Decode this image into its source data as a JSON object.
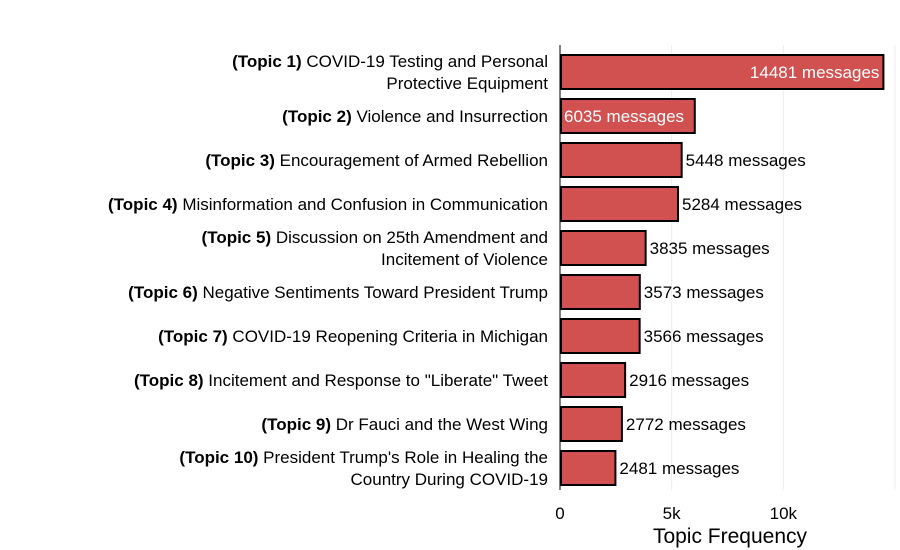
{
  "chart_data": {
    "type": "bar",
    "orientation": "horizontal",
    "title": "",
    "xlabel": "Topic Frequency",
    "ylabel": "",
    "xlim": [
      0,
      15000
    ],
    "x_ticks": [
      0,
      5000,
      10000
    ],
    "x_tick_labels": [
      "0",
      "5k",
      "10k"
    ],
    "grid": true,
    "bar_color": "#d05150",
    "bar_edge_color": "#000000",
    "categories": [
      {
        "prefix": "(Topic 1)",
        "name": "COVID-19 Testing and Personal Protective Equipment"
      },
      {
        "prefix": "(Topic 2)",
        "name": "Violence and Insurrection"
      },
      {
        "prefix": "(Topic 3)",
        "name": "Encouragement of Armed Rebellion"
      },
      {
        "prefix": "(Topic 4)",
        "name": "Misinformation and Confusion in Communication"
      },
      {
        "prefix": "(Topic 5)",
        "name": "Discussion on 25th Amendment and Incitement of Violence"
      },
      {
        "prefix": "(Topic 6)",
        "name": "Negative Sentiments Toward President Trump"
      },
      {
        "prefix": "(Topic 7)",
        "name": "COVID-19 Reopening Criteria in Michigan"
      },
      {
        "prefix": "(Topic 8)",
        "name": "Incitement and Response to \"Liberate\" Tweet"
      },
      {
        "prefix": "(Topic 9)",
        "name": "Dr Fauci and the West Wing"
      },
      {
        "prefix": "(Topic 10)",
        "name": "President Trump's Role in Healing the Country During COVID-19"
      }
    ],
    "values": [
      14481,
      6035,
      5448,
      5284,
      3835,
      3573,
      3566,
      2916,
      2772,
      2481
    ],
    "value_labels": [
      "14481 messages",
      "6035 messages",
      "5448 messages",
      "5284 messages",
      "3835 messages",
      "3573 messages",
      "3566 messages",
      "2916 messages",
      "2772 messages",
      "2481 messages"
    ]
  }
}
